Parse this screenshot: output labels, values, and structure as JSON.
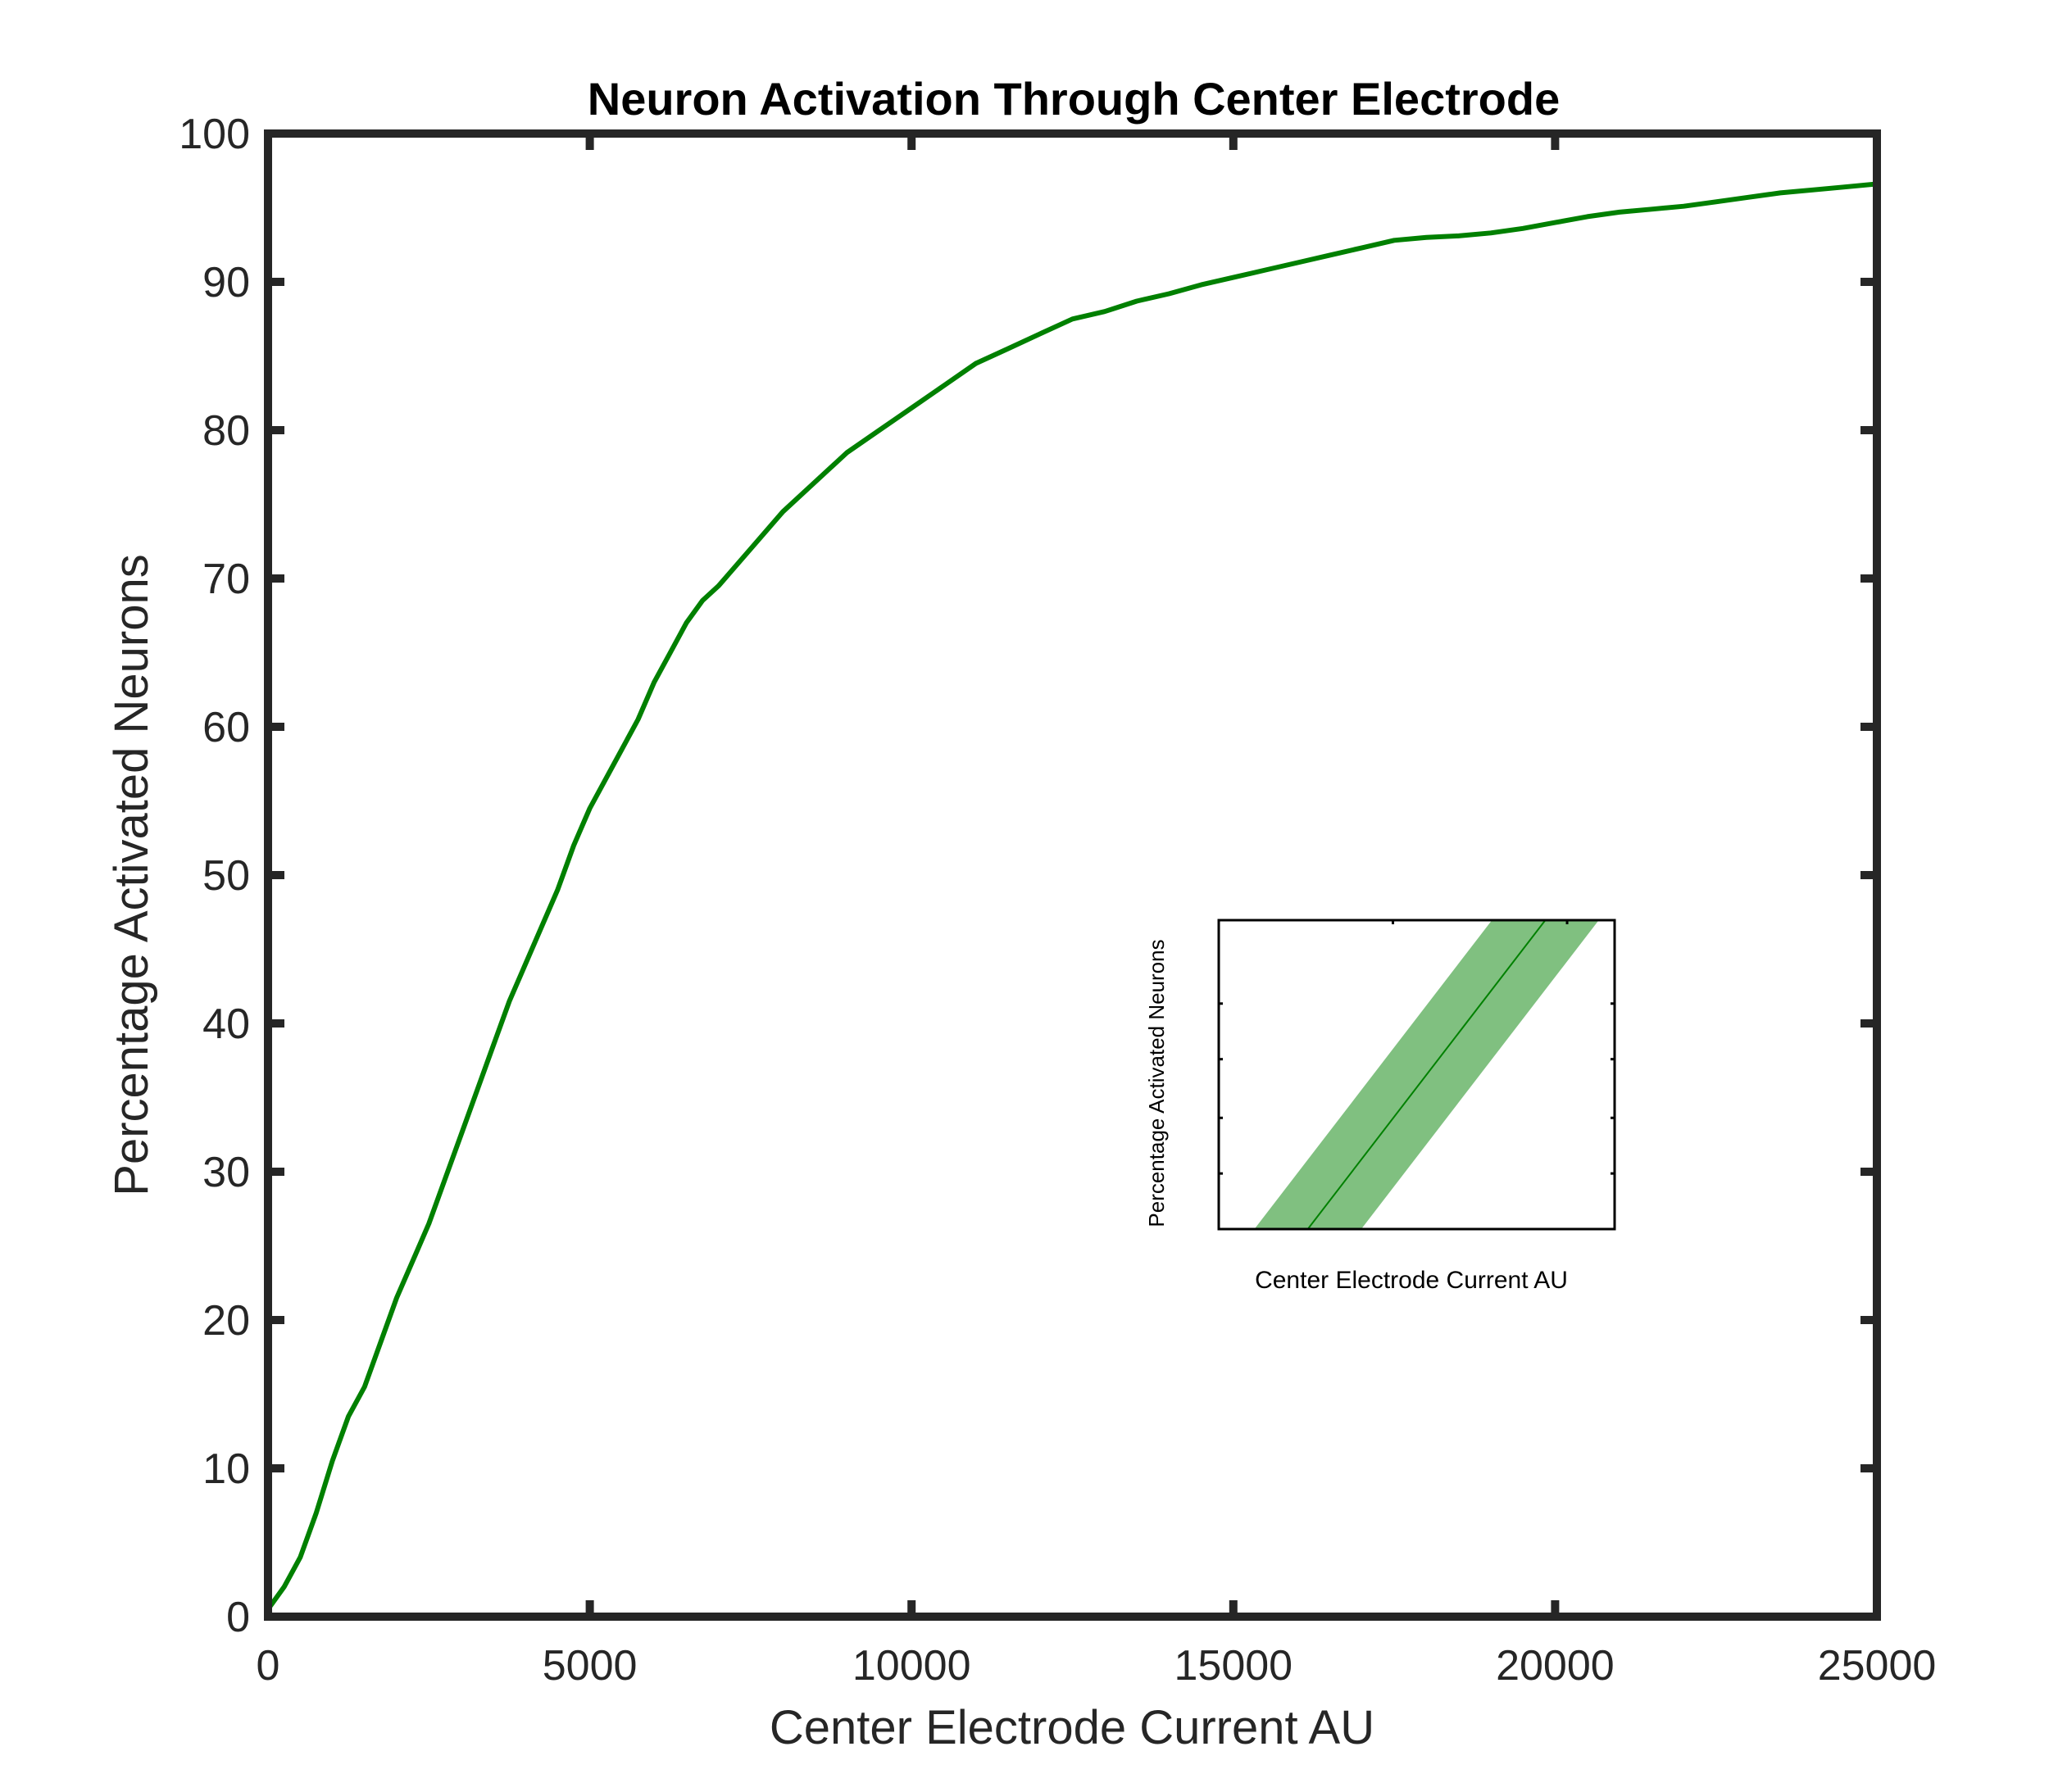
{
  "chart_data": [
    {
      "type": "line",
      "title": "Neuron Activation Through Center Electrode",
      "xlabel": "Center Electrode Current AU",
      "ylabel": "Percentage Activated Neurons",
      "xlim": [
        0,
        25000
      ],
      "ylim": [
        0,
        100
      ],
      "x_ticks": [
        "0",
        "5000",
        "10000",
        "15000",
        "20000",
        "25000"
      ],
      "y_ticks": [
        "0",
        "10",
        "20",
        "30",
        "40",
        "50",
        "60",
        "70",
        "80",
        "90",
        "100"
      ],
      "grid": false,
      "series": [
        {
          "color": "#008000",
          "x": [
            0,
            250,
            500,
            750,
            1000,
            1250,
            1500,
            1750,
            2000,
            2250,
            2500,
            2750,
            3000,
            3250,
            3500,
            3750,
            4000,
            4250,
            4500,
            4750,
            5000,
            5250,
            5500,
            5750,
            6000,
            6250,
            6500,
            6750,
            7000,
            7500,
            8000,
            8500,
            9000,
            9500,
            10000,
            10500,
            11000,
            11500,
            12000,
            12500,
            13000,
            13500,
            14000,
            14500,
            15000,
            15500,
            16000,
            16500,
            17000,
            17500,
            18000,
            18500,
            19000,
            19500,
            20000,
            20500,
            21000,
            21500,
            22000,
            22500,
            23000,
            23500,
            24000,
            24500,
            25000
          ],
          "values": [
            0.5,
            2.0,
            4.0,
            7.0,
            10.5,
            13.5,
            15.5,
            18.5,
            21.5,
            24.0,
            26.5,
            29.5,
            32.5,
            35.5,
            38.5,
            41.5,
            44.0,
            46.5,
            49.0,
            52.0,
            54.5,
            56.5,
            58.5,
            60.5,
            63.0,
            65.0,
            67.0,
            68.5,
            69.5,
            72.0,
            74.5,
            76.5,
            78.5,
            80.0,
            81.5,
            83.0,
            84.5,
            85.5,
            86.5,
            87.5,
            88.0,
            88.7,
            89.2,
            89.8,
            90.3,
            90.8,
            91.3,
            91.8,
            92.3,
            92.8,
            93.0,
            93.1,
            93.3,
            93.6,
            94.0,
            94.4,
            94.7,
            94.9,
            95.1,
            95.4,
            95.7,
            96.0,
            96.2,
            96.4,
            96.6
          ]
        }
      ]
    },
    {
      "type": "line",
      "title": "",
      "xlabel": "Center Electrode Current AU",
      "ylabel": "Percentage Activated Neurons",
      "x_ticks": [],
      "y_ticks": [],
      "grid": false,
      "xlim": [
        0,
        1
      ],
      "ylim": [
        0,
        1
      ],
      "series": [
        {
          "color": "#008000",
          "band_color": "#80c080",
          "x": [
            0.225,
            0.825
          ],
          "values": [
            0,
            1
          ],
          "band_halfwidth": 0.135
        }
      ]
    }
  ]
}
